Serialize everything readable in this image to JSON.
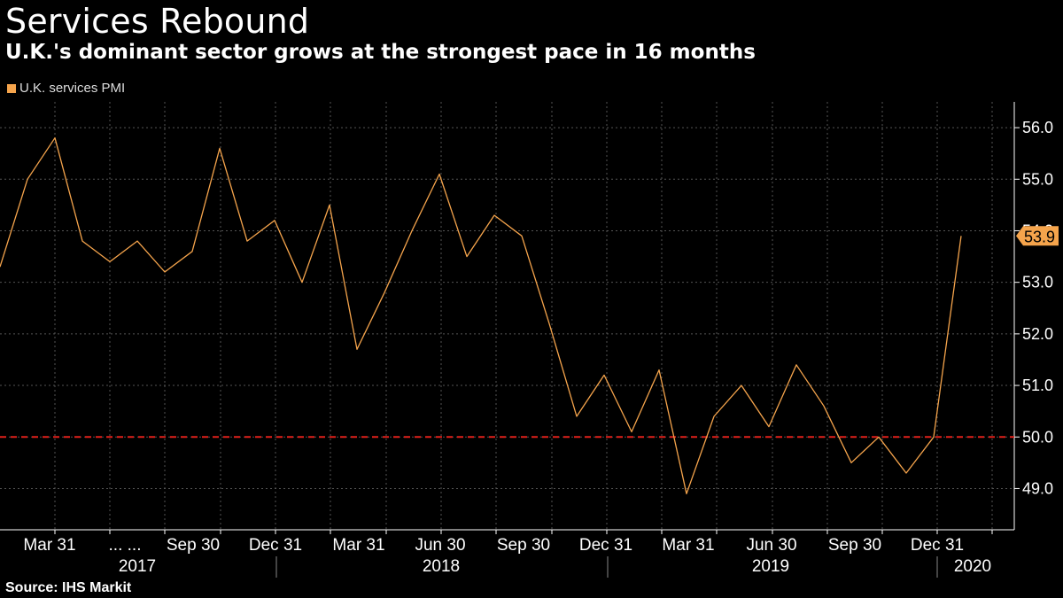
{
  "title": "Services Rebound",
  "subtitle": "U.K.'s dominant sector grows at the strongest pace in 16 months",
  "source": "Source: IHS Markit",
  "colors": {
    "line": "#f5a44c",
    "threshold": "#e0201b",
    "grid": "#555555",
    "background": "#000000"
  },
  "chart_data": {
    "type": "line",
    "series": [
      {
        "name": "U.K. services PMI",
        "values": [
          53.3,
          55.0,
          55.8,
          53.8,
          53.4,
          53.8,
          53.2,
          53.6,
          55.6,
          53.8,
          54.2,
          53.0,
          54.5,
          51.7,
          52.8,
          54.0,
          55.1,
          53.5,
          54.3,
          53.9,
          52.2,
          50.4,
          51.2,
          50.1,
          51.3,
          48.9,
          50.4,
          51.0,
          50.2,
          51.4,
          50.6,
          49.5,
          50.0,
          49.3,
          50.0,
          53.9
        ]
      }
    ],
    "x_start": "2017-01",
    "x_end": "2020-01",
    "ylim": [
      48.2,
      56.5
    ],
    "yticks": [
      "49.0",
      "50.0",
      "51.0",
      "52.0",
      "53.0",
      "54.0",
      "55.0",
      "56.0"
    ],
    "x_tick_labels": [
      "Mar 31",
      "... ...",
      "Sep 30",
      "Dec 31",
      "Mar 31",
      "Jun 30",
      "Sep 30",
      "Dec 31",
      "Mar 31",
      "Jun 30",
      "Sep 30",
      "Dec 31"
    ],
    "x_year_labels": [
      "2017",
      "2018",
      "2019",
      "2020"
    ],
    "reference_line": 50.0,
    "last_value_label": "53.9",
    "grid": true
  }
}
